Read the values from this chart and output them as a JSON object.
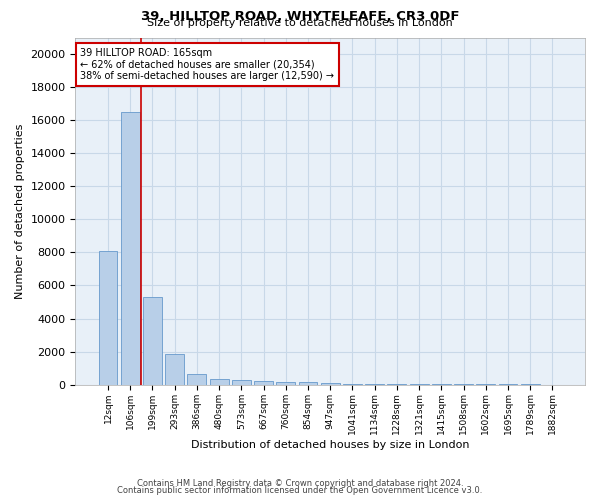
{
  "title1": "39, HILLTOP ROAD, WHYTELEAFE, CR3 0DF",
  "title2": "Size of property relative to detached houses in London",
  "xlabel": "Distribution of detached houses by size in London",
  "ylabel": "Number of detached properties",
  "bar_labels": [
    "12sqm",
    "106sqm",
    "199sqm",
    "293sqm",
    "386sqm",
    "480sqm",
    "573sqm",
    "667sqm",
    "760sqm",
    "854sqm",
    "947sqm",
    "1041sqm",
    "1134sqm",
    "1228sqm",
    "1321sqm",
    "1415sqm",
    "1508sqm",
    "1602sqm",
    "1695sqm",
    "1789sqm",
    "1882sqm"
  ],
  "bar_values": [
    8100,
    16500,
    5300,
    1850,
    650,
    350,
    270,
    210,
    180,
    150,
    80,
    60,
    50,
    40,
    30,
    25,
    20,
    18,
    15,
    12,
    10
  ],
  "bar_color": "#b8cfe8",
  "bar_edge_color": "#6699cc",
  "vline_color": "#cc0000",
  "vline_pos": 1.5,
  "annotation_title": "39 HILLTOP ROAD: 165sqm",
  "annotation_line1": "← 62% of detached houses are smaller (20,354)",
  "annotation_line2": "38% of semi-detached houses are larger (12,590) →",
  "annotation_box_color": "#ffffff",
  "annotation_box_edge": "#cc0000",
  "ylim": [
    0,
    21000
  ],
  "yticks": [
    0,
    2000,
    4000,
    6000,
    8000,
    10000,
    12000,
    14000,
    16000,
    18000,
    20000
  ],
  "grid_color": "#c8d8e8",
  "bg_color": "#e8f0f8",
  "footer1": "Contains HM Land Registry data © Crown copyright and database right 2024.",
  "footer2": "Contains public sector information licensed under the Open Government Licence v3.0."
}
